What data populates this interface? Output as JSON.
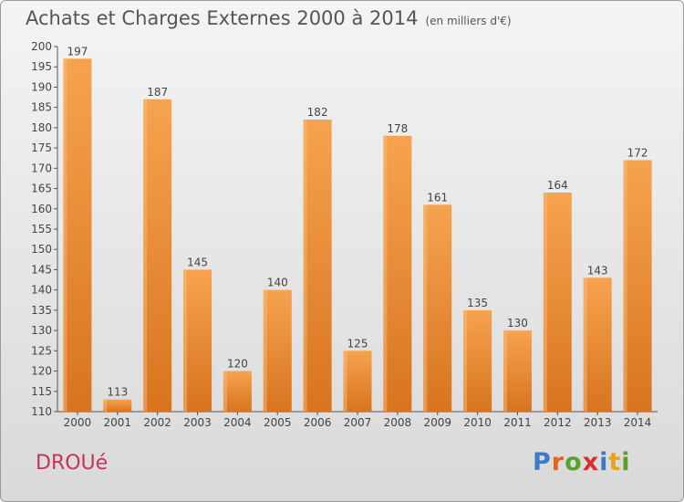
{
  "header": {
    "title": "Achats et Charges Externes 2000 à 2014",
    "unit": "(en milliers d'€)"
  },
  "footer": {
    "commune": "DROUé",
    "logo": [
      "P",
      "r",
      "o",
      "x",
      "i",
      "t",
      "i"
    ],
    "logo_colors": [
      "#3d7ac8",
      "#e8631a",
      "#5aa02c",
      "#d6322e",
      "#3d7ac8",
      "#e8a21a",
      "#5aa02c"
    ]
  },
  "colors": {
    "bar": "#e8832a",
    "bar_light": "#f7a85a",
    "axis": "#444444",
    "grid": "#c9c9c9"
  },
  "chart_data": {
    "type": "bar",
    "title": "Achats et Charges Externes 2000 à 2014",
    "categories": [
      "2000",
      "2001",
      "2002",
      "2003",
      "2004",
      "2005",
      "2006",
      "2007",
      "2008",
      "2009",
      "2010",
      "2011",
      "2012",
      "2013",
      "2014"
    ],
    "values": [
      197,
      113,
      187,
      145,
      120,
      140,
      182,
      125,
      178,
      161,
      135,
      130,
      164,
      143,
      172
    ],
    "ylim": [
      110,
      200
    ],
    "yticks": [
      110,
      115,
      120,
      125,
      130,
      135,
      140,
      145,
      150,
      155,
      160,
      165,
      170,
      175,
      180,
      185,
      190,
      195,
      200
    ],
    "grid": false,
    "data_labels": true
  }
}
